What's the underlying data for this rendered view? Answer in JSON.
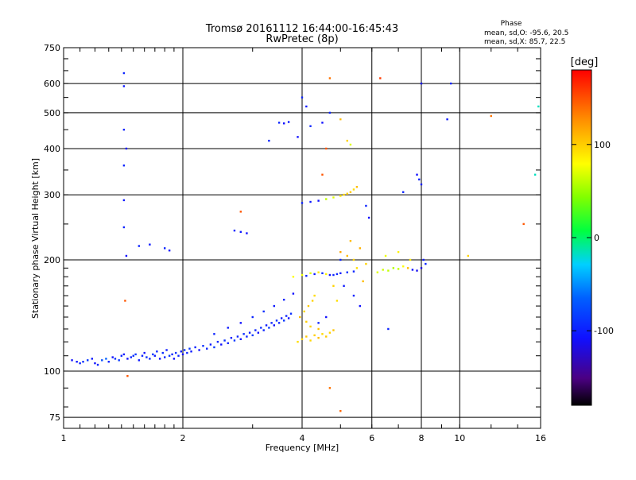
{
  "chart_data": {
    "type": "scatter",
    "title": "Tromsø 20161112 16:44:00-16:45:43",
    "subtitle": "RwPretec (8p)",
    "xlabel": "Frequency [MHz]",
    "ylabel": "Stationary phase Virtual Height [km]",
    "x_scale": "log",
    "y_scale": "log",
    "xlim": [
      1,
      16
    ],
    "ylim": [
      70,
      750
    ],
    "x_ticks": [
      1,
      2,
      4,
      6,
      8,
      10,
      16
    ],
    "y_ticks": [
      75,
      100,
      200,
      300,
      400,
      500,
      600,
      750
    ],
    "grid": true,
    "stats": {
      "title": "Phase",
      "line_o": "mean, sd,O: -95.6, 20.5",
      "line_x": "mean, sd,X:  85.7, 22.5"
    },
    "colorbar": {
      "label": "[deg]",
      "range": [
        -180,
        180
      ],
      "ticks": [
        100,
        0,
        -100
      ],
      "colormap": "rainbow-black-purple-blue-cyan-green-yellow-orange-red"
    },
    "points": [
      [
        1.05,
        107,
        -110
      ],
      [
        1.08,
        106,
        -105
      ],
      [
        1.1,
        105,
        -100
      ],
      [
        1.12,
        106,
        -95
      ],
      [
        1.15,
        107,
        -90
      ],
      [
        1.18,
        108,
        -105
      ],
      [
        1.2,
        105,
        -110
      ],
      [
        1.22,
        104,
        -100
      ],
      [
        1.25,
        107,
        -80
      ],
      [
        1.28,
        108,
        -70
      ],
      [
        1.3,
        106,
        -100
      ],
      [
        1.33,
        109,
        -110
      ],
      [
        1.35,
        108,
        -95
      ],
      [
        1.38,
        107,
        -90
      ],
      [
        1.4,
        110,
        -100
      ],
      [
        1.42,
        111,
        -105
      ],
      [
        1.45,
        108,
        -110
      ],
      [
        1.48,
        109,
        -100
      ],
      [
        1.5,
        110,
        -95
      ],
      [
        1.52,
        111,
        -90
      ],
      [
        1.55,
        107,
        -105
      ],
      [
        1.58,
        110,
        -100
      ],
      [
        1.6,
        112,
        -110
      ],
      [
        1.62,
        109,
        -95
      ],
      [
        1.65,
        108,
        -100
      ],
      [
        1.68,
        111,
        -90
      ],
      [
        1.7,
        110,
        -105
      ],
      [
        1.72,
        113,
        -100
      ],
      [
        1.75,
        108,
        -110
      ],
      [
        1.78,
        112,
        -95
      ],
      [
        1.8,
        109,
        -100
      ],
      [
        1.82,
        114,
        -105
      ],
      [
        1.85,
        110,
        -90
      ],
      [
        1.88,
        111,
        -100
      ],
      [
        1.9,
        108,
        -110
      ],
      [
        1.92,
        112,
        -95
      ],
      [
        1.95,
        110,
        -100
      ],
      [
        1.98,
        113,
        -105
      ],
      [
        2.0,
        111,
        -110
      ],
      [
        2.02,
        114,
        -95
      ],
      [
        2.05,
        112,
        -100
      ],
      [
        2.08,
        115,
        -90
      ],
      [
        2.1,
        113,
        -105
      ],
      [
        2.15,
        116,
        -100
      ],
      [
        2.2,
        114,
        -110
      ],
      [
        2.25,
        117,
        -95
      ],
      [
        2.3,
        115,
        -100
      ],
      [
        2.35,
        118,
        -105
      ],
      [
        2.4,
        116,
        -90
      ],
      [
        2.45,
        120,
        -100
      ],
      [
        2.5,
        118,
        -110
      ],
      [
        2.55,
        121,
        -95
      ],
      [
        2.6,
        119,
        -100
      ],
      [
        2.65,
        123,
        -105
      ],
      [
        2.7,
        121,
        -90
      ],
      [
        2.75,
        124,
        -100
      ],
      [
        2.8,
        122,
        -110
      ],
      [
        2.85,
        126,
        -95
      ],
      [
        2.9,
        124,
        -100
      ],
      [
        2.95,
        127,
        -105
      ],
      [
        3.0,
        125,
        -90
      ],
      [
        3.05,
        129,
        -100
      ],
      [
        3.1,
        127,
        -110
      ],
      [
        3.15,
        131,
        -95
      ],
      [
        3.2,
        129,
        -100
      ],
      [
        3.25,
        133,
        -105
      ],
      [
        3.3,
        131,
        -90
      ],
      [
        3.35,
        135,
        -100
      ],
      [
        3.4,
        133,
        -110
      ],
      [
        3.45,
        137,
        -95
      ],
      [
        3.5,
        135,
        -100
      ],
      [
        3.55,
        139,
        -105
      ],
      [
        3.6,
        137,
        -90
      ],
      [
        3.65,
        141,
        -100
      ],
      [
        3.7,
        139,
        -110
      ],
      [
        3.75,
        143,
        -95
      ],
      [
        2.4,
        126,
        -100
      ],
      [
        2.6,
        131,
        -105
      ],
      [
        2.8,
        135,
        -110
      ],
      [
        3.0,
        140,
        -100
      ],
      [
        3.2,
        145,
        -95
      ],
      [
        3.4,
        150,
        -105
      ],
      [
        3.6,
        156,
        -100
      ],
      [
        3.8,
        162,
        -110
      ],
      [
        3.9,
        120,
        95
      ],
      [
        4.0,
        122,
        100
      ],
      [
        4.1,
        124,
        105
      ],
      [
        4.2,
        121,
        98
      ],
      [
        4.3,
        125,
        102
      ],
      [
        4.4,
        123,
        110
      ],
      [
        4.5,
        126,
        96
      ],
      [
        4.6,
        124,
        104
      ],
      [
        4.7,
        127,
        100
      ],
      [
        4.8,
        129,
        106
      ],
      [
        3.95,
        140,
        110
      ],
      [
        4.05,
        145,
        98
      ],
      [
        4.15,
        150,
        104
      ],
      [
        4.25,
        155,
        100
      ],
      [
        4.3,
        160,
        96
      ],
      [
        4.1,
        136,
        102
      ],
      [
        4.2,
        132,
        100
      ],
      [
        4.4,
        130,
        108
      ],
      [
        3.8,
        180,
        80
      ],
      [
        4.0,
        182,
        75
      ],
      [
        4.2,
        184,
        70
      ],
      [
        4.4,
        185,
        90
      ],
      [
        4.6,
        183,
        85
      ],
      [
        4.8,
        182,
        -100
      ],
      [
        5.0,
        184,
        -105
      ],
      [
        5.2,
        185,
        -95
      ],
      [
        5.4,
        186,
        -100
      ],
      [
        4.1,
        181,
        -100
      ],
      [
        4.3,
        183,
        -105
      ],
      [
        4.5,
        184,
        -95
      ],
      [
        4.7,
        182,
        -110
      ],
      [
        4.9,
        183,
        -100
      ],
      [
        4.0,
        285,
        -100
      ],
      [
        4.2,
        287,
        -105
      ],
      [
        4.4,
        289,
        -110
      ],
      [
        4.6,
        292,
        60
      ],
      [
        4.8,
        295,
        70
      ],
      [
        5.0,
        298,
        90
      ],
      [
        5.2,
        302,
        100
      ],
      [
        5.4,
        310,
        95
      ],
      [
        5.5,
        315,
        110
      ],
      [
        5.3,
        305,
        105
      ],
      [
        5.1,
        300,
        98
      ],
      [
        5.0,
        210,
        120
      ],
      [
        5.2,
        205,
        110
      ],
      [
        5.4,
        200,
        100
      ],
      [
        5.6,
        215,
        115
      ],
      [
        5.8,
        195,
        100
      ],
      [
        5.5,
        190,
        95
      ],
      [
        5.3,
        225,
        110
      ],
      [
        6.2,
        185,
        70
      ],
      [
        6.4,
        188,
        65
      ],
      [
        6.6,
        187,
        60
      ],
      [
        6.8,
        190,
        55
      ],
      [
        7.0,
        189,
        60
      ],
      [
        7.2,
        192,
        80
      ],
      [
        7.4,
        190,
        110
      ],
      [
        7.6,
        188,
        -110
      ],
      [
        7.8,
        187,
        -115
      ],
      [
        8.0,
        190,
        -120
      ],
      [
        8.2,
        195,
        -100
      ],
      [
        8.1,
        200,
        -105
      ],
      [
        6.5,
        205,
        75
      ],
      [
        7.0,
        210,
        85
      ],
      [
        7.5,
        200,
        90
      ],
      [
        3.5,
        470,
        -100
      ],
      [
        3.6,
        468,
        -110
      ],
      [
        3.7,
        472,
        -105
      ],
      [
        3.3,
        420,
        -100
      ],
      [
        3.9,
        430,
        -110
      ],
      [
        4.0,
        550,
        -100
      ],
      [
        4.1,
        520,
        -105
      ],
      [
        4.2,
        460,
        -100
      ],
      [
        4.5,
        470,
        -110
      ],
      [
        4.7,
        500,
        -100
      ],
      [
        5.0,
        480,
        110
      ],
      [
        5.2,
        420,
        100
      ],
      [
        5.3,
        410,
        70
      ],
      [
        1.42,
        640,
        -100
      ],
      [
        1.42,
        590,
        -105
      ],
      [
        1.42,
        450,
        -100
      ],
      [
        1.44,
        400,
        -110
      ],
      [
        1.42,
        360,
        -100
      ],
      [
        1.42,
        290,
        -105
      ],
      [
        1.42,
        245,
        -100
      ],
      [
        1.44,
        205,
        -110
      ],
      [
        1.55,
        218,
        -100
      ],
      [
        1.65,
        220,
        -105
      ],
      [
        1.8,
        215,
        -100
      ],
      [
        1.85,
        212,
        -110
      ],
      [
        2.7,
        240,
        -100
      ],
      [
        2.8,
        238,
        -105
      ],
      [
        2.9,
        236,
        -110
      ],
      [
        8.0,
        600,
        -110
      ],
      [
        9.5,
        600,
        -100
      ],
      [
        9.3,
        480,
        -105
      ],
      [
        7.8,
        340,
        -110
      ],
      [
        7.9,
        330,
        -100
      ],
      [
        8.0,
        320,
        -105
      ],
      [
        7.2,
        305,
        -100
      ],
      [
        4.4,
        135,
        -100
      ],
      [
        4.6,
        140,
        -110
      ],
      [
        5.0,
        200,
        -100
      ],
      [
        5.1,
        170,
        -105
      ],
      [
        5.4,
        160,
        -100
      ],
      [
        5.6,
        150,
        -110
      ],
      [
        5.7,
        175,
        110
      ],
      [
        4.8,
        170,
        100
      ],
      [
        4.9,
        155,
        95
      ],
      [
        5.8,
        280,
        -100
      ],
      [
        5.9,
        260,
        -110
      ],
      [
        6.3,
        620,
        160
      ],
      [
        4.7,
        620,
        140
      ],
      [
        1.43,
        155,
        150
      ],
      [
        1.45,
        97,
        150
      ],
      [
        4.7,
        90,
        140
      ],
      [
        5.0,
        78,
        145
      ],
      [
        14.5,
        250,
        150
      ],
      [
        12.0,
        490,
        140
      ],
      [
        15.8,
        520,
        -20
      ],
      [
        15.5,
        340,
        -20
      ],
      [
        10.5,
        205,
        100
      ],
      [
        2.8,
        270,
        150
      ],
      [
        4.6,
        400,
        150
      ],
      [
        4.5,
        340,
        150
      ],
      [
        6.6,
        130,
        -100
      ]
    ]
  }
}
